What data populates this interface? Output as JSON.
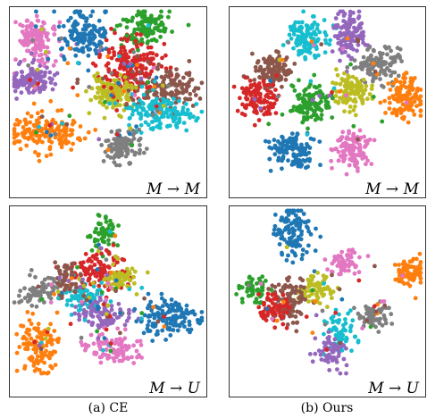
{
  "colors": {
    "blue": "#1f77b4",
    "orange": "#ff7f0e",
    "green": "#2ca02c",
    "red": "#d62728",
    "purple": "#9467bd",
    "brown": "#8c564b",
    "pink": "#e377c2",
    "gray": "#7f7f7f",
    "olive": "#bcbd22",
    "cyan": "#17becf"
  },
  "captions": {
    "left": "(a) CE",
    "right": "(b) Ours"
  },
  "chart_data": [
    {
      "type": "scatter",
      "label": "M → M",
      "column": "left",
      "row": "top",
      "clusters": [
        {
          "color": "pink",
          "x": 0.12,
          "y": 0.18,
          "sx": 0.055,
          "sy": 0.07,
          "n": 140
        },
        {
          "color": "blue",
          "x": 0.38,
          "y": 0.15,
          "sx": 0.06,
          "sy": 0.07,
          "n": 140
        },
        {
          "color": "green",
          "x": 0.7,
          "y": 0.1,
          "sx": 0.07,
          "sy": 0.05,
          "n": 120
        },
        {
          "color": "purple",
          "x": 0.1,
          "y": 0.42,
          "sx": 0.06,
          "sy": 0.05,
          "n": 120
        },
        {
          "color": "red",
          "x": 0.62,
          "y": 0.35,
          "sx": 0.08,
          "sy": 0.09,
          "n": 180
        },
        {
          "color": "brown",
          "x": 0.8,
          "y": 0.47,
          "sx": 0.08,
          "sy": 0.06,
          "n": 140
        },
        {
          "color": "olive",
          "x": 0.52,
          "y": 0.5,
          "sx": 0.06,
          "sy": 0.05,
          "n": 130
        },
        {
          "color": "cyan",
          "x": 0.77,
          "y": 0.62,
          "sx": 0.09,
          "sy": 0.05,
          "n": 150
        },
        {
          "color": "orange",
          "x": 0.17,
          "y": 0.74,
          "sx": 0.09,
          "sy": 0.06,
          "n": 160
        },
        {
          "color": "gray",
          "x": 0.57,
          "y": 0.83,
          "sx": 0.05,
          "sy": 0.05,
          "n": 110
        }
      ]
    },
    {
      "type": "scatter",
      "label": "M → M",
      "column": "right",
      "row": "top",
      "clusters": [
        {
          "color": "cyan",
          "x": 0.4,
          "y": 0.17,
          "sx": 0.05,
          "sy": 0.06,
          "n": 120
        },
        {
          "color": "purple",
          "x": 0.62,
          "y": 0.14,
          "sx": 0.04,
          "sy": 0.07,
          "n": 110
        },
        {
          "color": "gray",
          "x": 0.77,
          "y": 0.33,
          "sx": 0.06,
          "sy": 0.05,
          "n": 110
        },
        {
          "color": "brown",
          "x": 0.22,
          "y": 0.36,
          "sx": 0.05,
          "sy": 0.05,
          "n": 110
        },
        {
          "color": "olive",
          "x": 0.62,
          "y": 0.49,
          "sx": 0.05,
          "sy": 0.05,
          "n": 110
        },
        {
          "color": "red",
          "x": 0.12,
          "y": 0.53,
          "sx": 0.05,
          "sy": 0.06,
          "n": 110
        },
        {
          "color": "green",
          "x": 0.41,
          "y": 0.56,
          "sx": 0.05,
          "sy": 0.06,
          "n": 120
        },
        {
          "color": "orange",
          "x": 0.91,
          "y": 0.52,
          "sx": 0.05,
          "sy": 0.07,
          "n": 120
        },
        {
          "color": "blue",
          "x": 0.3,
          "y": 0.85,
          "sx": 0.06,
          "sy": 0.06,
          "n": 120
        },
        {
          "color": "pink",
          "x": 0.63,
          "y": 0.83,
          "sx": 0.05,
          "sy": 0.06,
          "n": 110
        }
      ]
    },
    {
      "type": "scatter",
      "label": "M → U",
      "column": "left",
      "row": "bottom",
      "clusters": [
        {
          "color": "green",
          "x": 0.48,
          "y": 0.15,
          "sx": 0.03,
          "sy": 0.06,
          "n": 60
        },
        {
          "color": "red",
          "x": 0.45,
          "y": 0.38,
          "sx": 0.07,
          "sy": 0.06,
          "n": 120
        },
        {
          "color": "olive",
          "x": 0.57,
          "y": 0.42,
          "sx": 0.04,
          "sy": 0.04,
          "n": 60
        },
        {
          "color": "gray",
          "x": 0.15,
          "y": 0.5,
          "sx": 0.06,
          "sy": 0.04,
          "n": 70
        },
        {
          "color": "cyan",
          "x": 0.37,
          "y": 0.54,
          "sx": 0.06,
          "sy": 0.04,
          "n": 70
        },
        {
          "color": "purple",
          "x": 0.48,
          "y": 0.64,
          "sx": 0.08,
          "sy": 0.04,
          "n": 90
        },
        {
          "color": "blue",
          "x": 0.82,
          "y": 0.65,
          "sx": 0.08,
          "sy": 0.06,
          "n": 140
        },
        {
          "color": "orange",
          "x": 0.13,
          "y": 0.82,
          "sx": 0.05,
          "sy": 0.08,
          "n": 120
        },
        {
          "color": "pink",
          "x": 0.53,
          "y": 0.85,
          "sx": 0.07,
          "sy": 0.05,
          "n": 100
        },
        {
          "color": "brown",
          "x": 0.3,
          "y": 0.42,
          "sx": 0.05,
          "sy": 0.05,
          "n": 50
        }
      ]
    },
    {
      "type": "scatter",
      "label": "M → U",
      "column": "right",
      "row": "bottom",
      "clusters": [
        {
          "color": "blue",
          "x": 0.32,
          "y": 0.14,
          "sx": 0.05,
          "sy": 0.08,
          "n": 110
        },
        {
          "color": "pink",
          "x": 0.59,
          "y": 0.33,
          "sx": 0.04,
          "sy": 0.04,
          "n": 60
        },
        {
          "color": "orange",
          "x": 0.93,
          "y": 0.38,
          "sx": 0.04,
          "sy": 0.05,
          "n": 80
        },
        {
          "color": "green",
          "x": 0.11,
          "y": 0.48,
          "sx": 0.04,
          "sy": 0.04,
          "n": 60
        },
        {
          "color": "olive",
          "x": 0.46,
          "y": 0.48,
          "sx": 0.05,
          "sy": 0.05,
          "n": 70
        },
        {
          "color": "brown",
          "x": 0.3,
          "y": 0.55,
          "sx": 0.05,
          "sy": 0.07,
          "n": 100
        },
        {
          "color": "red",
          "x": 0.22,
          "y": 0.6,
          "sx": 0.04,
          "sy": 0.05,
          "n": 60
        },
        {
          "color": "gray",
          "x": 0.74,
          "y": 0.64,
          "sx": 0.04,
          "sy": 0.04,
          "n": 60
        },
        {
          "color": "cyan",
          "x": 0.56,
          "y": 0.74,
          "sx": 0.04,
          "sy": 0.05,
          "n": 60
        },
        {
          "color": "purple",
          "x": 0.52,
          "y": 0.86,
          "sx": 0.04,
          "sy": 0.05,
          "n": 70
        }
      ]
    }
  ]
}
